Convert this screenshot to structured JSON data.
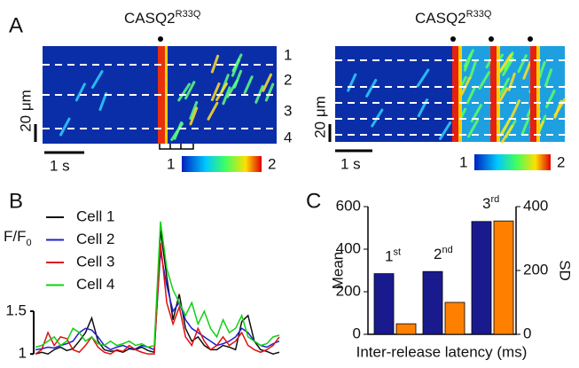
{
  "panel_a": {
    "label": "A",
    "title": {
      "text": "CASQ2",
      "sup": "R33Q"
    },
    "line_labels": [
      "1",
      "2",
      "3",
      "4"
    ],
    "scale_y": "20 μm",
    "scale_x": "1 s",
    "colorbar": [
      "1",
      "2"
    ]
  },
  "chart_data": [
    {
      "type": "line",
      "label": "B",
      "y_label": {
        "text": "F/F",
        "sub": "0"
      },
      "ylim": [
        0.95,
        2.6
      ],
      "yticks": [
        1,
        1.5
      ],
      "series": [
        {
          "name": "Cell 1",
          "color": "#111111",
          "values": [
            1.0,
            1.02,
            1.0,
            1.05,
            1.08,
            1.04,
            1.06,
            1.15,
            1.25,
            1.42,
            1.15,
            1.05,
            1.03,
            1.04,
            1.02,
            1.06,
            1.05,
            1.08,
            1.04,
            1.02,
            2.45,
            1.9,
            1.4,
            1.7,
            1.3,
            1.15,
            1.2,
            1.1,
            1.05,
            1.05,
            1.1,
            1.08,
            1.05,
            1.38,
            1.45,
            1.15,
            1.05,
            1.03,
            1.0,
            1.02
          ]
        },
        {
          "name": "Cell 2",
          "color": "#1f1fd0",
          "values": [
            1.05,
            1.06,
            1.08,
            1.07,
            1.1,
            1.12,
            1.15,
            1.25,
            1.3,
            1.28,
            1.2,
            1.1,
            1.05,
            1.08,
            1.1,
            1.07,
            1.06,
            1.1,
            1.08,
            1.05,
            2.2,
            1.8,
            1.5,
            1.6,
            1.4,
            1.3,
            1.25,
            1.2,
            1.15,
            1.1,
            1.12,
            1.15,
            1.2,
            1.3,
            1.25,
            1.15,
            1.1,
            1.08,
            1.12,
            1.15
          ]
        },
        {
          "name": "Cell 3",
          "color": "#e01010",
          "values": [
            1.0,
            1.05,
            1.25,
            1.1,
            1.2,
            1.18,
            1.05,
            1.02,
            1.1,
            1.2,
            1.08,
            1.02,
            1.0,
            1.05,
            1.03,
            1.1,
            1.05,
            1.02,
            1.0,
            1.0,
            2.3,
            1.6,
            1.35,
            1.55,
            1.2,
            1.1,
            1.3,
            1.15,
            1.05,
            1.1,
            1.2,
            1.1,
            1.15,
            1.25,
            1.1,
            1.05,
            1.02,
            1.05,
            1.1,
            1.2
          ]
        },
        {
          "name": "Cell 4",
          "color": "#10d010",
          "values": [
            1.08,
            1.1,
            1.15,
            1.2,
            1.1,
            1.15,
            1.3,
            1.25,
            1.15,
            1.2,
            1.12,
            1.1,
            1.15,
            1.1,
            1.12,
            1.15,
            1.1,
            1.12,
            1.08,
            1.1,
            2.55,
            2.0,
            1.75,
            1.6,
            1.45,
            1.6,
            1.35,
            1.5,
            1.3,
            1.2,
            1.4,
            1.25,
            1.3,
            1.45,
            1.2,
            1.15,
            1.1,
            1.12,
            1.2,
            1.22
          ]
        }
      ]
    },
    {
      "type": "bar",
      "label": "C",
      "x_label": "Inter-release latency (ms)",
      "y_label": "Mean",
      "y2_label": "SD",
      "categories": [
        "1",
        "2",
        "3"
      ],
      "category_sups": [
        "st",
        "nd",
        "rd"
      ],
      "ylim": [
        0,
        600
      ],
      "yticks": [
        0,
        200,
        400,
        600
      ],
      "y2lim": [
        0,
        400
      ],
      "y2ticks": [
        0,
        200,
        400
      ],
      "series": [
        {
          "name": "Mean",
          "color": "#1a1a8f",
          "values": [
            285,
            295,
            530
          ]
        },
        {
          "name": "SD",
          "color": "#ff8000",
          "axis": "y2",
          "values": [
            33,
            100,
            355
          ]
        }
      ]
    }
  ]
}
